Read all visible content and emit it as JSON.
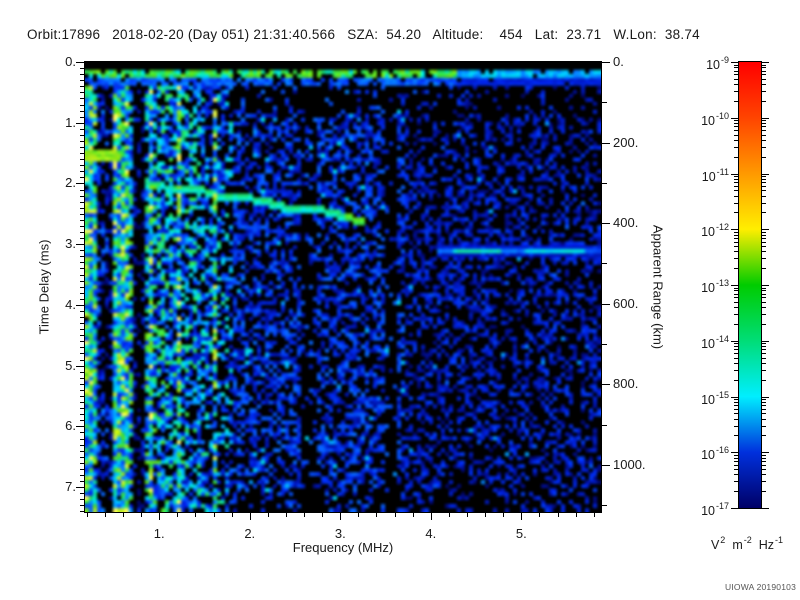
{
  "header": {
    "line": "Orbit:17896   2018-02-20 (Day 051) 21:31:40.566   SZA:  54.20   Altitude:    454   Lat:  23.71   W.Lon:  38.74",
    "orbit": "17896",
    "date": "2018-02-20",
    "day_of_year": "051",
    "time_utc": "21:31:40.566",
    "sza_deg": "54.20",
    "altitude_km": "454",
    "latitude_deg": "23.71",
    "west_longitude_deg": "38.74"
  },
  "watermark": "UIOWA 20190103",
  "chart_data": {
    "type": "heatmap",
    "xlabel": "Frequency (MHz)",
    "x_range_mhz": [
      0.18,
      5.88
    ],
    "x_major_ticks": [
      {
        "v": 1,
        "label": "1."
      },
      {
        "v": 2,
        "label": "2."
      },
      {
        "v": 3,
        "label": "3."
      },
      {
        "v": 4,
        "label": "4."
      },
      {
        "v": 5,
        "label": "5."
      }
    ],
    "x_minor_step_mhz": 0.2,
    "y_left_label": "Time Delay (ms)",
    "y_left_range_ms": [
      0,
      7.41
    ],
    "y_left_major_ticks": [
      {
        "v": 0,
        "label": "0."
      },
      {
        "v": 1,
        "label": "1."
      },
      {
        "v": 2,
        "label": "2."
      },
      {
        "v": 3,
        "label": "3."
      },
      {
        "v": 4,
        "label": "4."
      },
      {
        "v": 5,
        "label": "5."
      },
      {
        "v": 6,
        "label": "6."
      },
      {
        "v": 7,
        "label": "7."
      }
    ],
    "y_left_minor_step_ms": 0.1,
    "y_right_label": "Apparent Range (km)",
    "y_right_range_km": [
      0,
      1117
    ],
    "y_right_major_ticks": [
      {
        "v": 0,
        "label": "0."
      },
      {
        "v": 200,
        "label": "200."
      },
      {
        "v": 400,
        "label": "400."
      },
      {
        "v": 600,
        "label": "600."
      },
      {
        "v": 800,
        "label": "800."
      },
      {
        "v": 1000,
        "label": "1000."
      }
    ],
    "y_right_minor_step_km": 100,
    "colorbar": {
      "scale": "log10",
      "tick_base": "10",
      "tick_exponents": [
        "-9",
        "-10",
        "-11",
        "-12",
        "-13",
        "-14",
        "-15",
        "-16",
        "-17"
      ],
      "unit_parts": [
        {
          "b": "V",
          "s": "2"
        },
        {
          "b": "m",
          "s": "-2"
        },
        {
          "b": "Hz",
          "s": "-1"
        }
      ],
      "decade_colors": [
        "#ff0000",
        "#ff4400",
        "#ff9900",
        "#ffee00",
        "#00cc00",
        "#00dd77",
        "#00eeff",
        "#0030dd",
        "#000066"
      ]
    },
    "features": [
      {
        "name": "broadband-interference-stripe",
        "kind": "horizontal-stripe",
        "delay_ms": [
          0.15,
          0.3
        ],
        "freq_mhz": [
          0.18,
          5.88
        ]
      },
      {
        "name": "low-frequency-ionospheric-noise",
        "kind": "dense-vertical-striping",
        "freq_mhz": [
          0.18,
          1.8
        ],
        "delay_ms": [
          0.3,
          7.41
        ]
      },
      {
        "name": "strong-echo-patch",
        "kind": "bright-patch",
        "freq_mhz": [
          0.18,
          0.47
        ],
        "delay_ms": [
          1.45,
          1.6
        ]
      },
      {
        "name": "ionospheric-echo-trace",
        "kind": "descending-trace",
        "start": {
          "freq_mhz": 0.84,
          "delay_ms": 1.94
        },
        "end": {
          "freq_mhz": 3.24,
          "delay_ms": 2.55
        }
      },
      {
        "name": "surface-echo-line",
        "kind": "horizontal-line",
        "delay_ms": 3.13,
        "freq_mhz": [
          4.1,
          5.88
        ]
      }
    ],
    "render": {
      "seed": 20190103,
      "grid": [
        129,
        113
      ],
      "colormap": [
        [
          0.0,
          "#000000"
        ],
        [
          0.08,
          "#000040"
        ],
        [
          0.18,
          "#0010a0"
        ],
        [
          0.3,
          "#0028e8"
        ],
        [
          0.42,
          "#0868ff"
        ],
        [
          0.52,
          "#00b4ff"
        ],
        [
          0.6,
          "#00e4e4"
        ],
        [
          0.7,
          "#20d860"
        ],
        [
          0.8,
          "#58dc20"
        ],
        [
          0.9,
          "#aae818"
        ],
        [
          1.0,
          "#f8f860"
        ]
      ],
      "green_columns": [
        0.004,
        0.03,
        0.057,
        0.077
      ],
      "dark_bands": [
        [
          0.415,
          0.447,
          0.1
        ],
        [
          0.58,
          0.607,
          0.28
        ],
        [
          0.022,
          0.054,
          0.45
        ],
        [
          0.089,
          0.112,
          0.4
        ]
      ]
    }
  }
}
